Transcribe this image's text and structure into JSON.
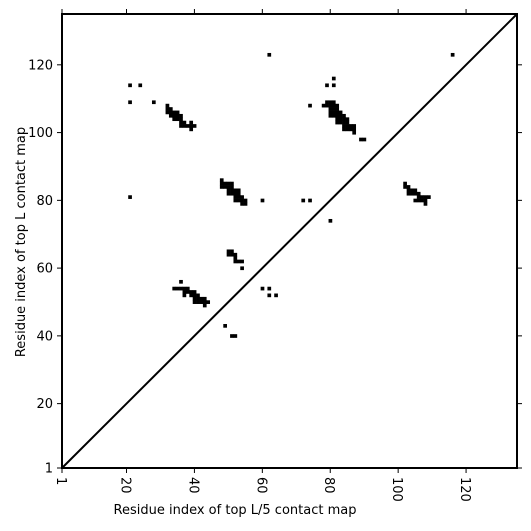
{
  "chart_data": {
    "type": "heatmap",
    "title": "",
    "xlabel": "Residue index of top L/5 contact map",
    "ylabel": "Residue index of top L contact map",
    "xlim": [
      1,
      135
    ],
    "ylim": [
      1,
      135
    ],
    "x_ticks": [
      1,
      20,
      40,
      60,
      80,
      100,
      120
    ],
    "y_ticks": [
      1,
      20,
      40,
      60,
      80,
      100,
      120
    ],
    "x_tick_rotation": 90,
    "diagonal": true,
    "grid": false,
    "legend": "none",
    "colors": {
      "contact": "#000000",
      "background": "#ffffff"
    },
    "contacts": [
      [
        21,
        114
      ],
      [
        24,
        114
      ],
      [
        21,
        109
      ],
      [
        28,
        109
      ],
      [
        21,
        81
      ],
      [
        62,
        123
      ],
      [
        116,
        123
      ],
      [
        32,
        108
      ],
      [
        32,
        107
      ],
      [
        33,
        107
      ],
      [
        32,
        106
      ],
      [
        33,
        106
      ],
      [
        34,
        106
      ],
      [
        35,
        106
      ],
      [
        33,
        105
      ],
      [
        34,
        105
      ],
      [
        35,
        105
      ],
      [
        36,
        105
      ],
      [
        34,
        104
      ],
      [
        35,
        104
      ],
      [
        36,
        104
      ],
      [
        36,
        103
      ],
      [
        37,
        103
      ],
      [
        39,
        103
      ],
      [
        36,
        102
      ],
      [
        37,
        102
      ],
      [
        38,
        102
      ],
      [
        39,
        102
      ],
      [
        40,
        102
      ],
      [
        39,
        101
      ],
      [
        79,
        114
      ],
      [
        81,
        114
      ],
      [
        81,
        116
      ],
      [
        74,
        108
      ],
      [
        78,
        108
      ],
      [
        79,
        109
      ],
      [
        80,
        109
      ],
      [
        81,
        109
      ],
      [
        79,
        108
      ],
      [
        80,
        108
      ],
      [
        81,
        108
      ],
      [
        82,
        108
      ],
      [
        80,
        107
      ],
      [
        81,
        107
      ],
      [
        82,
        107
      ],
      [
        80,
        106
      ],
      [
        81,
        106
      ],
      [
        82,
        106
      ],
      [
        83,
        106
      ],
      [
        80,
        105
      ],
      [
        81,
        105
      ],
      [
        82,
        105
      ],
      [
        83,
        105
      ],
      [
        84,
        105
      ],
      [
        82,
        104
      ],
      [
        83,
        104
      ],
      [
        84,
        104
      ],
      [
        85,
        104
      ],
      [
        82,
        103
      ],
      [
        83,
        103
      ],
      [
        84,
        103
      ],
      [
        85,
        103
      ],
      [
        84,
        102
      ],
      [
        85,
        102
      ],
      [
        86,
        102
      ],
      [
        87,
        102
      ],
      [
        84,
        101
      ],
      [
        85,
        101
      ],
      [
        86,
        101
      ],
      [
        87,
        101
      ],
      [
        87,
        100
      ],
      [
        89,
        98
      ],
      [
        90,
        98
      ],
      [
        48,
        86
      ],
      [
        48,
        85
      ],
      [
        49,
        85
      ],
      [
        50,
        85
      ],
      [
        51,
        85
      ],
      [
        48,
        84
      ],
      [
        49,
        84
      ],
      [
        50,
        84
      ],
      [
        51,
        84
      ],
      [
        50,
        83
      ],
      [
        51,
        83
      ],
      [
        52,
        83
      ],
      [
        53,
        83
      ],
      [
        50,
        82
      ],
      [
        51,
        82
      ],
      [
        52,
        82
      ],
      [
        53,
        82
      ],
      [
        52,
        81
      ],
      [
        53,
        81
      ],
      [
        54,
        81
      ],
      [
        52,
        80
      ],
      [
        53,
        80
      ],
      [
        54,
        80
      ],
      [
        55,
        80
      ],
      [
        54,
        79
      ],
      [
        55,
        79
      ],
      [
        60,
        80
      ],
      [
        72,
        80
      ],
      [
        74,
        80
      ],
      [
        80,
        74
      ],
      [
        102,
        85
      ],
      [
        102,
        84
      ],
      [
        103,
        84
      ],
      [
        103,
        83
      ],
      [
        104,
        83
      ],
      [
        105,
        83
      ],
      [
        103,
        82
      ],
      [
        104,
        82
      ],
      [
        105,
        82
      ],
      [
        106,
        82
      ],
      [
        106,
        81
      ],
      [
        107,
        81
      ],
      [
        108,
        81
      ],
      [
        109,
        81
      ],
      [
        105,
        80
      ],
      [
        106,
        80
      ],
      [
        107,
        80
      ],
      [
        108,
        80
      ],
      [
        108,
        79
      ],
      [
        50,
        65
      ],
      [
        51,
        65
      ],
      [
        50,
        64
      ],
      [
        51,
        64
      ],
      [
        52,
        64
      ],
      [
        52,
        63
      ],
      [
        52,
        62
      ],
      [
        53,
        62
      ],
      [
        54,
        62
      ],
      [
        54,
        60
      ],
      [
        36,
        56
      ],
      [
        34,
        54
      ],
      [
        35,
        54
      ],
      [
        36,
        54
      ],
      [
        37,
        54
      ],
      [
        38,
        54
      ],
      [
        37,
        53
      ],
      [
        38,
        53
      ],
      [
        39,
        53
      ],
      [
        40,
        53
      ],
      [
        37,
        52
      ],
      [
        39,
        52
      ],
      [
        40,
        52
      ],
      [
        41,
        52
      ],
      [
        40,
        51
      ],
      [
        41,
        51
      ],
      [
        42,
        51
      ],
      [
        43,
        51
      ],
      [
        40,
        50
      ],
      [
        41,
        50
      ],
      [
        42,
        50
      ],
      [
        43,
        50
      ],
      [
        44,
        50
      ],
      [
        43,
        49
      ],
      [
        60,
        54
      ],
      [
        62,
        54
      ],
      [
        62,
        52
      ],
      [
        64,
        52
      ],
      [
        49,
        43
      ],
      [
        51,
        40
      ],
      [
        52,
        40
      ]
    ]
  }
}
